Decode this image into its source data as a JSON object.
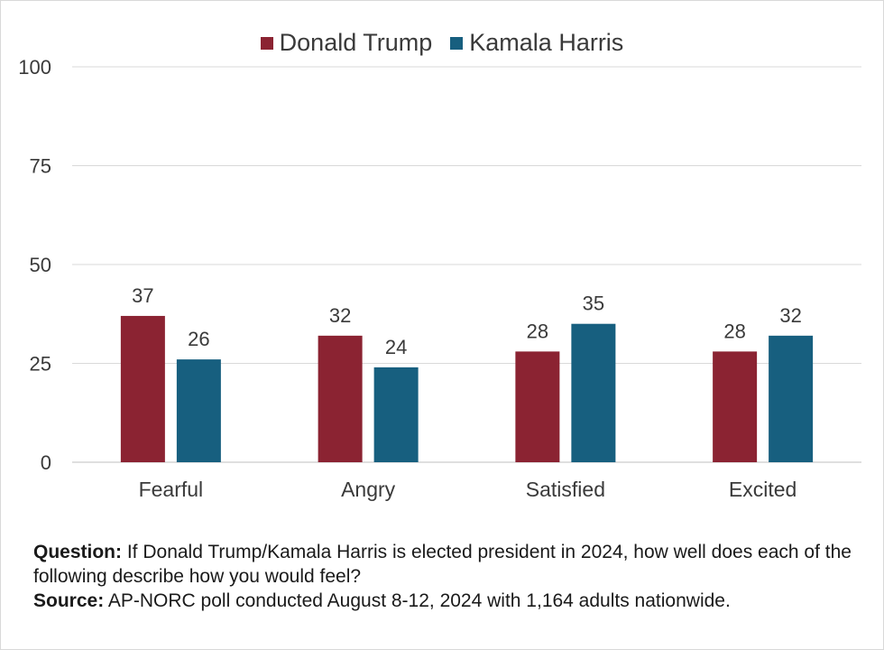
{
  "chart_data": {
    "type": "bar",
    "categories": [
      "Fearful",
      "Angry",
      "Satisfied",
      "Excited"
    ],
    "series": [
      {
        "name": "Donald Trump",
        "values": [
          37,
          32,
          28,
          28
        ],
        "color": "#8b2332"
      },
      {
        "name": "Kamala Harris",
        "values": [
          26,
          24,
          35,
          32
        ],
        "color": "#175f7f"
      }
    ],
    "ylim": [
      0,
      100
    ],
    "yticks": [
      0,
      25,
      50,
      75,
      100
    ],
    "grid": true,
    "legend": "top-center",
    "data_labels": true
  },
  "notes": {
    "question_label": "Question:",
    "question_text": "If Donald Trump/Kamala Harris is elected president in 2024, how well does each of the following describe how you would feel?",
    "source_label": "Source:",
    "source_text": "AP-NORC poll conducted August 8-12, 2024 with 1,164 adults nationwide."
  }
}
